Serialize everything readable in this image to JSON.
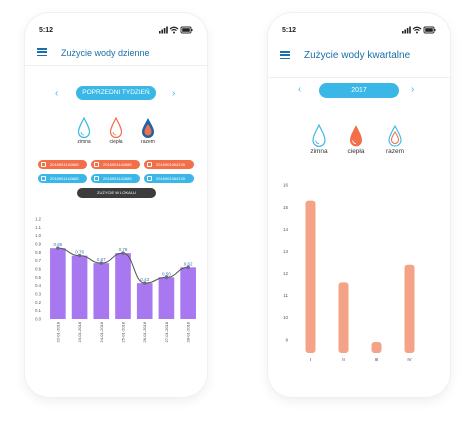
{
  "daily": {
    "status_time": "5:12",
    "title": "Zużycie wody dzienne",
    "period": "POPRZEDNI TYDZIEŃ",
    "drops": [
      {
        "label": "zimna",
        "kind": "cold"
      },
      {
        "label": "ciepła",
        "kind": "hot"
      },
      {
        "label": "razem",
        "kind": "total"
      }
    ],
    "meters": [
      {
        "text": "2016901142685",
        "type": "hot"
      },
      {
        "text": "2016901142685",
        "type": "hot"
      },
      {
        "text": "2016901064135",
        "type": "hot"
      },
      {
        "text": "2016901142685",
        "type": "cold"
      },
      {
        "text": "2016901142685",
        "type": "cold"
      },
      {
        "text": "2016901064135",
        "type": "cold"
      }
    ],
    "local_button": "ZUŻYCIE W LOKALU",
    "colors": {
      "cold": "#3ab7e6",
      "hot": "#f26f4a",
      "bar": "#a778f0",
      "line": "#555555"
    }
  },
  "quarterly": {
    "status_time": "5:12",
    "title": "Zużycie wody kwartalne",
    "period": "2017",
    "drops": [
      {
        "label": "zimna",
        "kind": "cold"
      },
      {
        "label": "ciepła",
        "kind": "hot"
      },
      {
        "label": "razem",
        "kind": "total"
      }
    ],
    "colors": {
      "bar": "#f4a386"
    }
  },
  "chart_data": [
    {
      "type": "bar",
      "categories": [
        "22-01-2018",
        "23-01-2018",
        "24-01-2018",
        "25-01-2018",
        "26-01-2018",
        "27-01-2018",
        "28-01-2018"
      ],
      "values": [
        0.85,
        0.76,
        0.67,
        0.79,
        0.43,
        0.5,
        0.62
      ],
      "line_values": [
        0.85,
        0.76,
        0.67,
        0.79,
        0.43,
        0.5,
        0.62
      ],
      "data_labels": [
        "0.85",
        "0.76",
        "0.67",
        "0.79",
        "0.43",
        "0.50",
        "0.62"
      ],
      "yticks": [
        "0.0",
        "0.1",
        "0.2",
        "0.3",
        "0.4",
        "0.5",
        "0.6",
        "0.7",
        "0.8",
        "0.9",
        "1.0",
        "1.1",
        "1.2"
      ],
      "ylim": [
        0,
        1.2
      ],
      "grid": false
    },
    {
      "type": "bar",
      "categories": [
        "I",
        "II",
        "III",
        "IV"
      ],
      "values": [
        15.3,
        11.6,
        8.9,
        12.4
      ],
      "yticks": [
        "9",
        "10",
        "11",
        "12",
        "13",
        "14",
        "15",
        "16"
      ],
      "ylim": [
        8.4,
        16.1
      ],
      "grid": false
    }
  ]
}
